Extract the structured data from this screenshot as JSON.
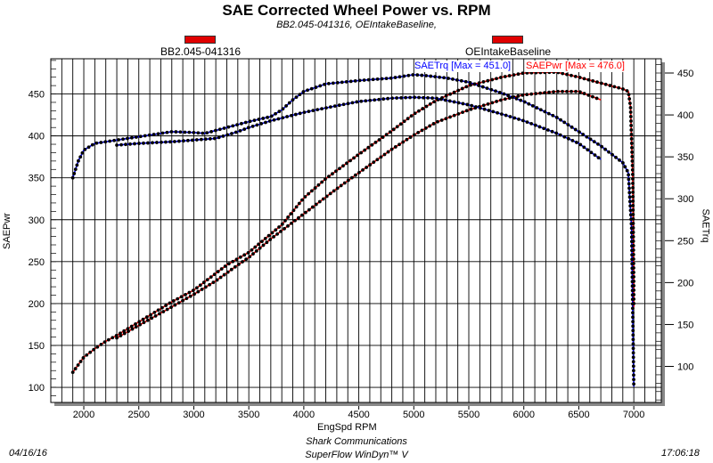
{
  "chart_data": {
    "type": "line",
    "title": "SAE Corrected Wheel Power vs. RPM",
    "subtitle": "BB2.045-041316, OEIntakeBaseline,",
    "xlabel": "EngSpd RPM",
    "ylabel": "SAEPwr",
    "y2label": "SAETrq",
    "xlim": [
      1700,
      7250
    ],
    "ylim": [
      82,
      492
    ],
    "y2lim": [
      57,
      467
    ],
    "xticks": [
      2000,
      2500,
      3000,
      3500,
      4000,
      4500,
      5000,
      5500,
      6000,
      6500,
      7000
    ],
    "yticks": [
      100,
      150,
      200,
      250,
      300,
      350,
      400,
      450
    ],
    "y2ticks": [
      100,
      150,
      200,
      250,
      300,
      350,
      400,
      450
    ],
    "grid": true,
    "legend": [
      {
        "label": "BB2.045-041316",
        "color": "#e00000"
      },
      {
        "label": "OEIntakeBaseline",
        "color": "#e00000"
      }
    ],
    "annotations": {
      "trq_max": "SAETrq [Max = 451.0]",
      "pwr_max": "SAEPwr [Max = 476.0]"
    },
    "series": [
      {
        "name": "SAEPwr run 1",
        "axis": "left",
        "color": "#ff0000",
        "points": [
          [
            1900,
            118
          ],
          [
            1950,
            127
          ],
          [
            2000,
            136
          ],
          [
            2100,
            146
          ],
          [
            2200,
            155
          ],
          [
            2300,
            162
          ],
          [
            2500,
            178
          ],
          [
            2800,
            202
          ],
          [
            3000,
            216
          ],
          [
            3300,
            246
          ],
          [
            3500,
            261
          ],
          [
            3800,
            294
          ],
          [
            4000,
            326
          ],
          [
            4200,
            349
          ],
          [
            4500,
            378
          ],
          [
            4800,
            406
          ],
          [
            5000,
            426
          ],
          [
            5200,
            442
          ],
          [
            5500,
            460
          ],
          [
            5800,
            470
          ],
          [
            6000,
            475
          ],
          [
            6300,
            476
          ],
          [
            6500,
            470
          ],
          [
            6700,
            463
          ],
          [
            6900,
            456
          ],
          [
            6950,
            453
          ],
          [
            6970,
            435
          ],
          [
            6990,
            354
          ],
          [
            7000,
            224
          ],
          [
            7000,
            196
          ]
        ]
      },
      {
        "name": "SAEPwr run 2",
        "axis": "left",
        "color": "#ff0000",
        "points": [
          [
            2300,
            159
          ],
          [
            2500,
            174
          ],
          [
            2800,
            196
          ],
          [
            3000,
            211
          ],
          [
            3200,
            227
          ],
          [
            3400,
            246
          ],
          [
            3500,
            255
          ],
          [
            3700,
            277
          ],
          [
            4000,
            307
          ],
          [
            4300,
            337
          ],
          [
            4500,
            356
          ],
          [
            4800,
            384
          ],
          [
            5000,
            401
          ],
          [
            5200,
            416
          ],
          [
            5500,
            431
          ],
          [
            5800,
            443
          ],
          [
            6000,
            449
          ],
          [
            6300,
            453
          ],
          [
            6500,
            453
          ],
          [
            6700,
            443
          ]
        ]
      },
      {
        "name": "SAETrq run 1",
        "axis": "right",
        "color": "#0000ff",
        "points": [
          [
            1900,
            325
          ],
          [
            1950,
            345
          ],
          [
            2000,
            358
          ],
          [
            2100,
            366
          ],
          [
            2300,
            370
          ],
          [
            2500,
            374
          ],
          [
            2800,
            380
          ],
          [
            3000,
            379
          ],
          [
            3100,
            378
          ],
          [
            3300,
            385
          ],
          [
            3500,
            392
          ],
          [
            3700,
            398
          ],
          [
            3800,
            406
          ],
          [
            3900,
            418
          ],
          [
            4000,
            428
          ],
          [
            4200,
            437
          ],
          [
            4500,
            441
          ],
          [
            4800,
            444
          ],
          [
            5000,
            448
          ],
          [
            5100,
            447
          ],
          [
            5300,
            444
          ],
          [
            5500,
            439
          ],
          [
            5800,
            426
          ],
          [
            6000,
            416
          ],
          [
            6300,
            397
          ],
          [
            6500,
            380
          ],
          [
            6700,
            363
          ],
          [
            6900,
            343
          ],
          [
            6950,
            331
          ],
          [
            6980,
            265
          ],
          [
            6990,
            168
          ],
          [
            7000,
            76
          ]
        ]
      },
      {
        "name": "SAETrq run 2",
        "axis": "right",
        "color": "#0000ff",
        "points": [
          [
            2300,
            364
          ],
          [
            2500,
            366
          ],
          [
            2800,
            368
          ],
          [
            3000,
            370
          ],
          [
            3200,
            372
          ],
          [
            3400,
            380
          ],
          [
            3500,
            385
          ],
          [
            3700,
            393
          ],
          [
            4000,
            403
          ],
          [
            4300,
            411
          ],
          [
            4500,
            416
          ],
          [
            4800,
            420
          ],
          [
            5000,
            421
          ],
          [
            5200,
            420
          ],
          [
            5500,
            412
          ],
          [
            5800,
            401
          ],
          [
            6000,
            393
          ],
          [
            6300,
            378
          ],
          [
            6500,
            366
          ],
          [
            6700,
            347
          ]
        ]
      }
    ]
  },
  "footer": {
    "date": "04/16/16",
    "company": "Shark Communications",
    "software": "SuperFlow WinDyn™ V",
    "time": "17:06:18"
  }
}
